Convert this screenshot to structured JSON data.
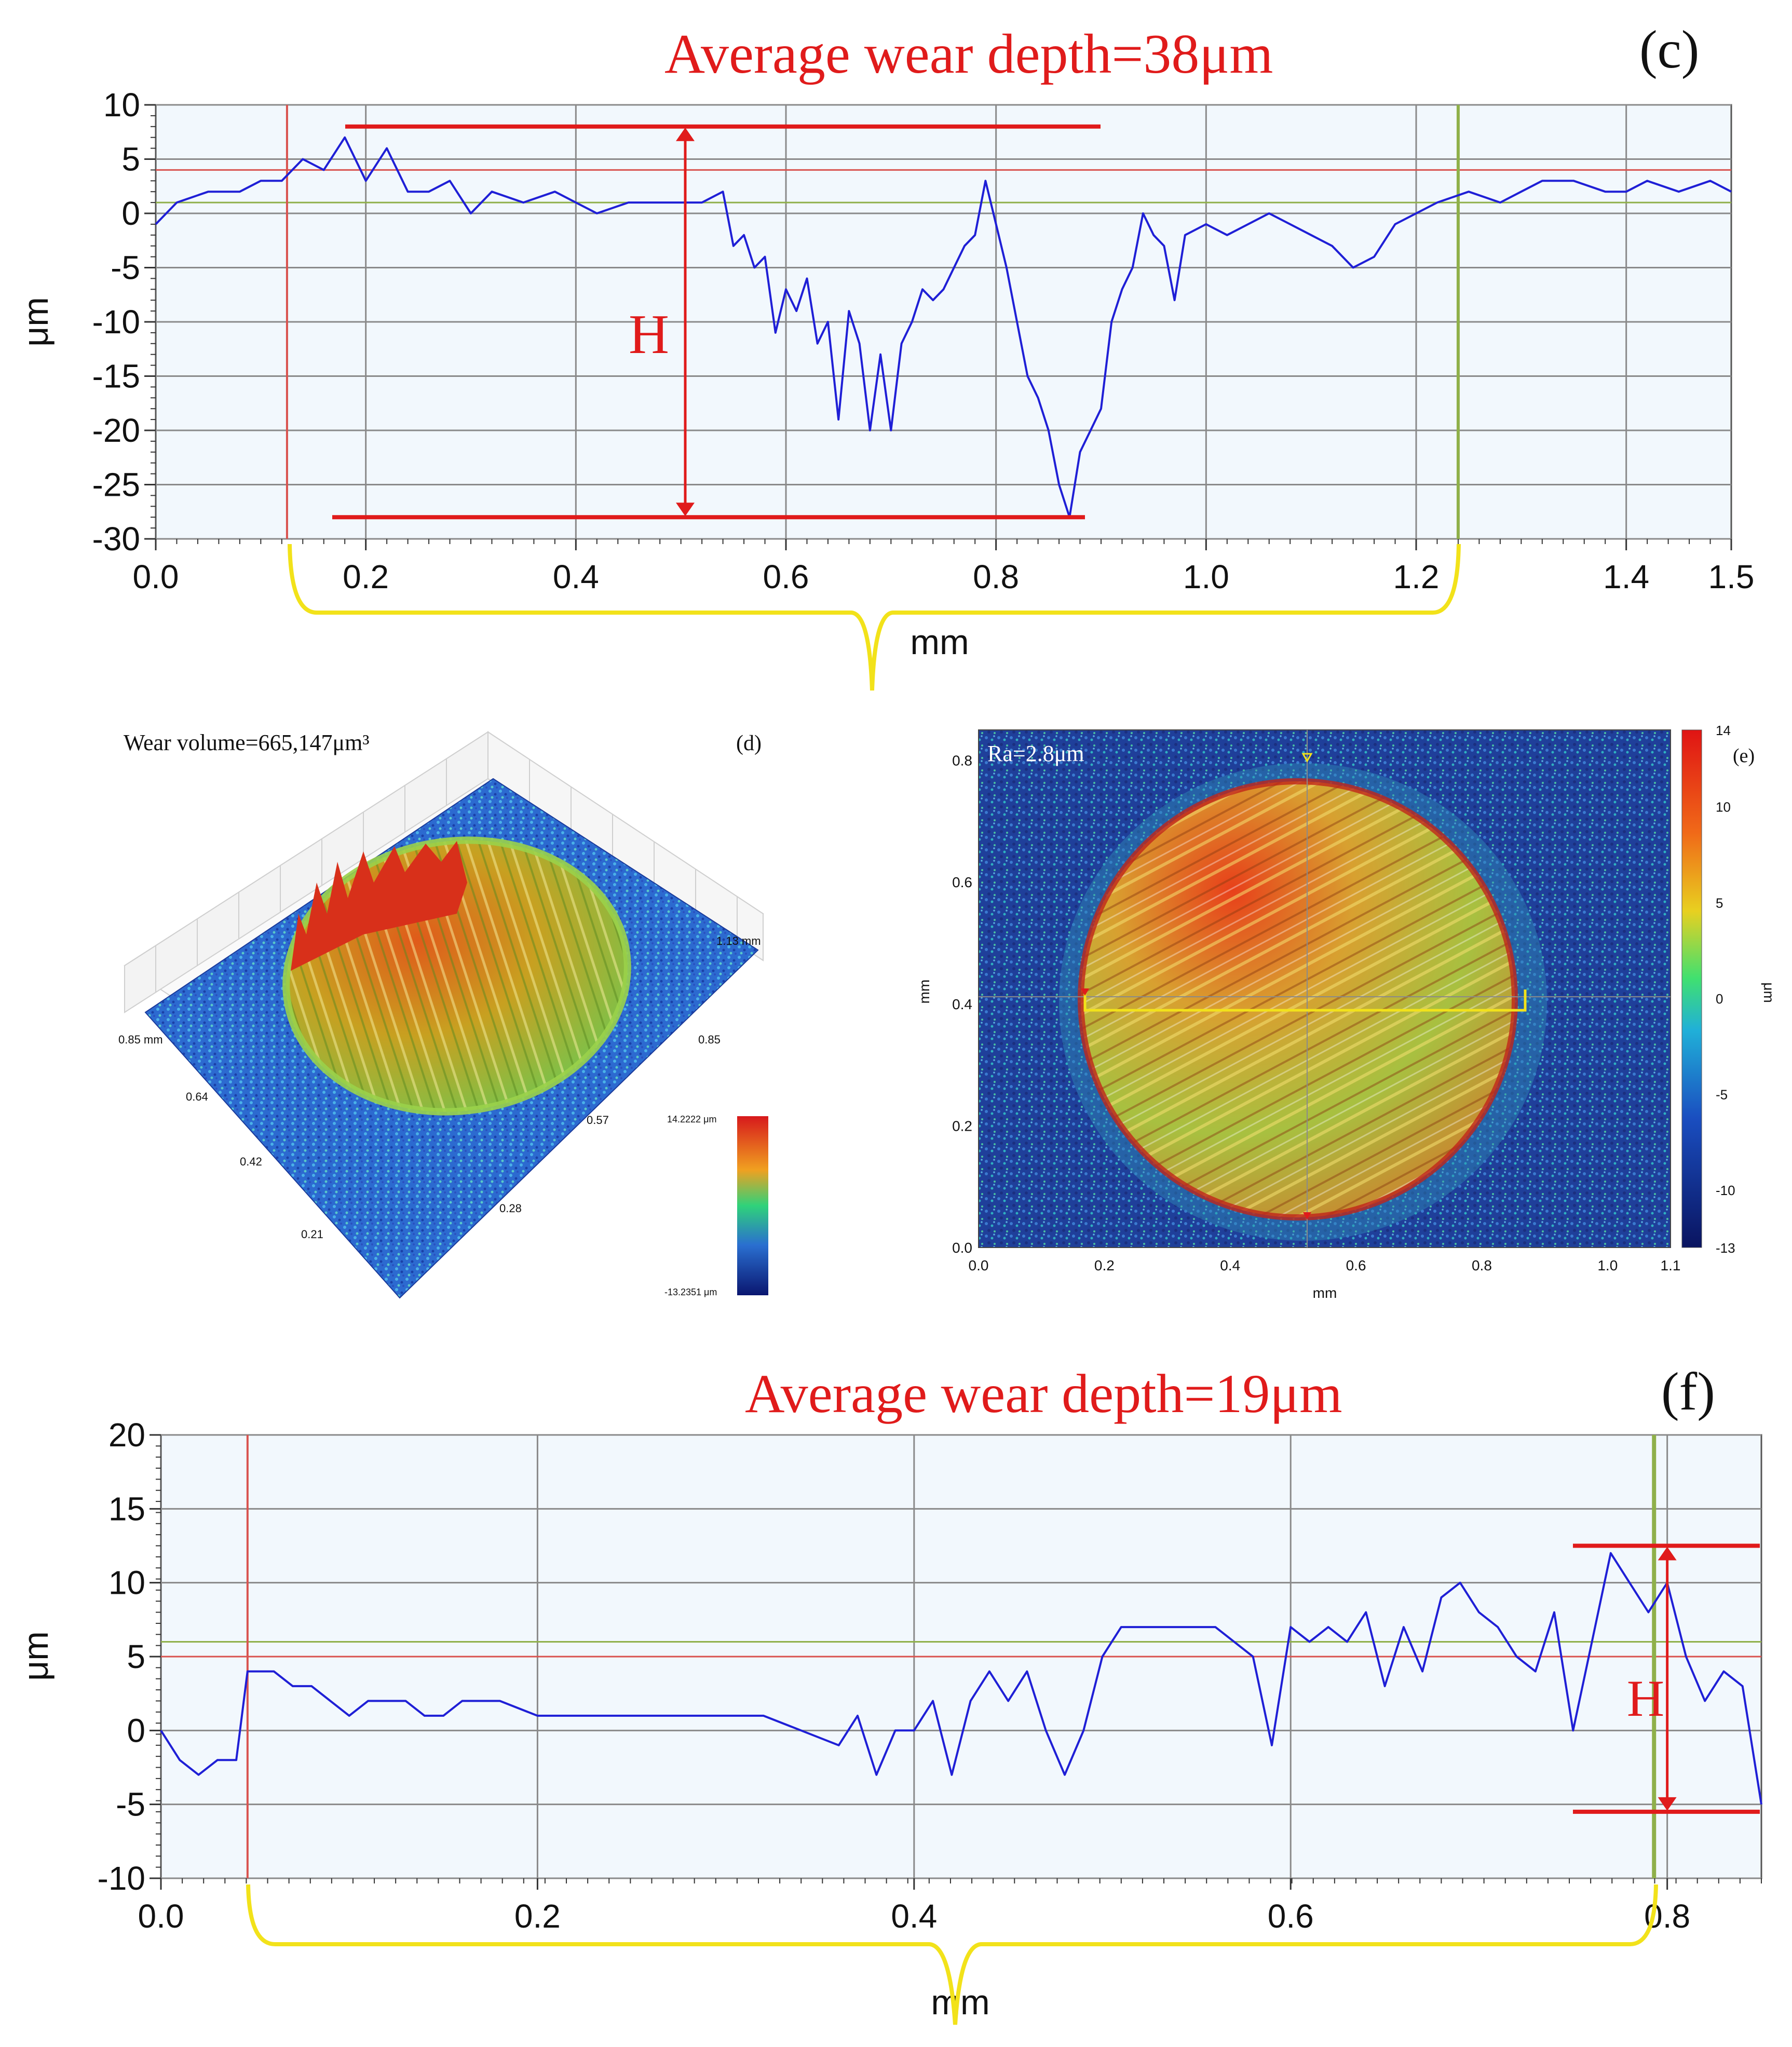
{
  "panels": {
    "c": {
      "panel_label": "(c)",
      "annotation": "Average wear depth=38μm",
      "h_label": "H"
    },
    "d": {
      "panel_label": "(d)",
      "annotation": "Wear volume=665,147μm³",
      "x_axis_ticks": [
        "0.85 mm",
        "0.64",
        "0.42",
        "0.21"
      ],
      "y_axis_ticks": [
        "1.13 mm",
        "0.85",
        "0.57",
        "0.28"
      ],
      "colorbar_max": "14.2222 μm",
      "colorbar_min": "-13.2351 μm"
    },
    "e": {
      "panel_label": "(e)",
      "annotation": "Ra=2.8μm",
      "xlabel": "mm",
      "ylabel": "mm",
      "x_ticks": [
        "0.0",
        "0.2",
        "0.4",
        "0.6",
        "0.8",
        "1.0",
        "1.1"
      ],
      "y_ticks": [
        "0.0",
        "0.2",
        "0.4",
        "0.6",
        "0.8"
      ],
      "colorbar_ticks": [
        "14",
        "10",
        "5",
        "0",
        "-5",
        "-10",
        "-13"
      ],
      "colorbar_label": "μm"
    },
    "f": {
      "panel_label": "(f)",
      "annotation": "Average wear depth=19μm",
      "h_label": "H"
    }
  },
  "colors": {
    "profile_line": "#1f1fd6",
    "annotation_red": "#e01b1b",
    "cursor_red": "#d9534f",
    "cursor_green": "#8fb04a",
    "bracket_yellow": "#f2e21a",
    "plot_bg": "#f2f8fd",
    "grid": "#8a8a8a"
  },
  "chart_data": [
    {
      "id": "c",
      "type": "line",
      "xlabel": "mm",
      "ylabel": "μm",
      "xlim": [
        0,
        1.5
      ],
      "ylim": [
        -30,
        10
      ],
      "x_ticks": [
        0.0,
        0.2,
        0.4,
        0.6,
        0.8,
        1.0,
        1.2,
        1.4,
        1.5
      ],
      "x_tick_labels": [
        "0.0",
        "0.2",
        "0.4",
        "0.6",
        "0.8",
        "1.0",
        "1.2",
        "1.4",
        "1.5"
      ],
      "y_ticks": [
        10,
        5,
        0,
        -5,
        -10,
        -15,
        -20,
        -25,
        -30
      ],
      "y_tick_labels": [
        "10",
        "5",
        "0",
        "-5",
        "-10",
        "-15",
        "-20",
        "-25",
        "-30"
      ],
      "grid": true,
      "reference_lines": {
        "red_y": 4,
        "green_y": 1,
        "red_x": 0.125,
        "green_x": 1.24
      },
      "h_marker": {
        "top_y": 8,
        "bottom_y": -28,
        "x": 0.5
      },
      "series": [
        {
          "x": [
            0.0,
            0.02,
            0.05,
            0.08,
            0.1,
            0.12,
            0.14,
            0.16,
            0.18,
            0.2,
            0.22,
            0.24,
            0.26,
            0.28,
            0.3,
            0.32,
            0.35,
            0.38,
            0.4,
            0.42,
            0.45,
            0.48,
            0.5,
            0.52,
            0.54,
            0.55,
            0.56,
            0.57,
            0.58,
            0.59,
            0.6,
            0.61,
            0.62,
            0.63,
            0.64,
            0.65,
            0.66,
            0.67,
            0.68,
            0.69,
            0.7,
            0.71,
            0.72,
            0.73,
            0.74,
            0.75,
            0.76,
            0.77,
            0.78,
            0.79,
            0.8,
            0.81,
            0.82,
            0.83,
            0.84,
            0.85,
            0.86,
            0.87,
            0.88,
            0.89,
            0.9,
            0.91,
            0.92,
            0.93,
            0.94,
            0.95,
            0.96,
            0.97,
            0.98,
            1.0,
            1.02,
            1.04,
            1.06,
            1.08,
            1.1,
            1.12,
            1.14,
            1.16,
            1.18,
            1.2,
            1.22,
            1.25,
            1.28,
            1.3,
            1.32,
            1.35,
            1.38,
            1.4,
            1.42,
            1.45,
            1.48,
            1.5
          ],
          "y": [
            -1,
            1,
            2,
            2,
            3,
            3,
            5,
            4,
            7,
            3,
            6,
            2,
            2,
            3,
            0,
            2,
            1,
            2,
            1,
            0,
            1,
            1,
            1,
            1,
            2,
            -3,
            -2,
            -5,
            -4,
            -11,
            -7,
            -9,
            -6,
            -12,
            -10,
            -19,
            -9,
            -12,
            -20,
            -13,
            -20,
            -12,
            -10,
            -7,
            -8,
            -7,
            -5,
            -3,
            -2,
            3,
            -1,
            -5,
            -10,
            -15,
            -17,
            -20,
            -25,
            -28,
            -22,
            -20,
            -18,
            -10,
            -7,
            -5,
            0,
            -2,
            -3,
            -8,
            -2,
            -1,
            -2,
            -1,
            0,
            -1,
            -2,
            -3,
            -5,
            -4,
            -1,
            0,
            1,
            2,
            1,
            2,
            3,
            3,
            2,
            2,
            3,
            2,
            3,
            2
          ]
        }
      ]
    },
    {
      "id": "f",
      "type": "line",
      "xlabel": "mm",
      "ylabel": "μm",
      "xlim": [
        0,
        0.85
      ],
      "ylim": [
        -10,
        20
      ],
      "x_ticks": [
        0.0,
        0.2,
        0.4,
        0.6,
        0.8
      ],
      "x_tick_labels": [
        "0.0",
        "0.2",
        "0.4",
        "0.6",
        "0.8"
      ],
      "y_ticks": [
        20,
        15,
        10,
        5,
        0,
        -5,
        -10
      ],
      "y_tick_labels": [
        "20",
        "15",
        "10",
        "5",
        "0",
        "-5",
        "-10"
      ],
      "grid": true,
      "reference_lines": {
        "red_y": 5,
        "green_y": 6,
        "red_x": 0.046,
        "green_x": 0.793
      },
      "h_marker": {
        "top_y": 12.5,
        "bottom_y": -5.5,
        "x": 0.8
      },
      "series": [
        {
          "x": [
            0.0,
            0.01,
            0.02,
            0.03,
            0.04,
            0.046,
            0.05,
            0.06,
            0.07,
            0.08,
            0.09,
            0.1,
            0.11,
            0.12,
            0.13,
            0.14,
            0.15,
            0.16,
            0.18,
            0.2,
            0.22,
            0.24,
            0.26,
            0.28,
            0.3,
            0.32,
            0.34,
            0.36,
            0.37,
            0.38,
            0.39,
            0.4,
            0.41,
            0.42,
            0.43,
            0.44,
            0.45,
            0.46,
            0.47,
            0.48,
            0.49,
            0.5,
            0.51,
            0.52,
            0.54,
            0.56,
            0.58,
            0.59,
            0.6,
            0.61,
            0.62,
            0.63,
            0.64,
            0.65,
            0.66,
            0.67,
            0.68,
            0.69,
            0.7,
            0.71,
            0.72,
            0.73,
            0.74,
            0.75,
            0.76,
            0.77,
            0.78,
            0.79,
            0.8,
            0.81,
            0.82,
            0.83,
            0.84,
            0.85
          ],
          "y": [
            0,
            -2,
            -3,
            -2,
            -2,
            4,
            4,
            4,
            3,
            3,
            2,
            1,
            2,
            2,
            2,
            1,
            1,
            2,
            2,
            1,
            1,
            1,
            1,
            1,
            1,
            1,
            0,
            -1,
            1,
            -3,
            0,
            0,
            2,
            -3,
            2,
            4,
            2,
            4,
            0,
            -3,
            0,
            5,
            7,
            7,
            7,
            7,
            5,
            -1,
            7,
            6,
            7,
            6,
            8,
            3,
            7,
            4,
            9,
            10,
            8,
            7,
            5,
            4,
            8,
            0,
            6,
            12,
            10,
            8,
            10,
            5,
            2,
            4,
            3,
            -5
          ]
        }
      ]
    }
  ]
}
